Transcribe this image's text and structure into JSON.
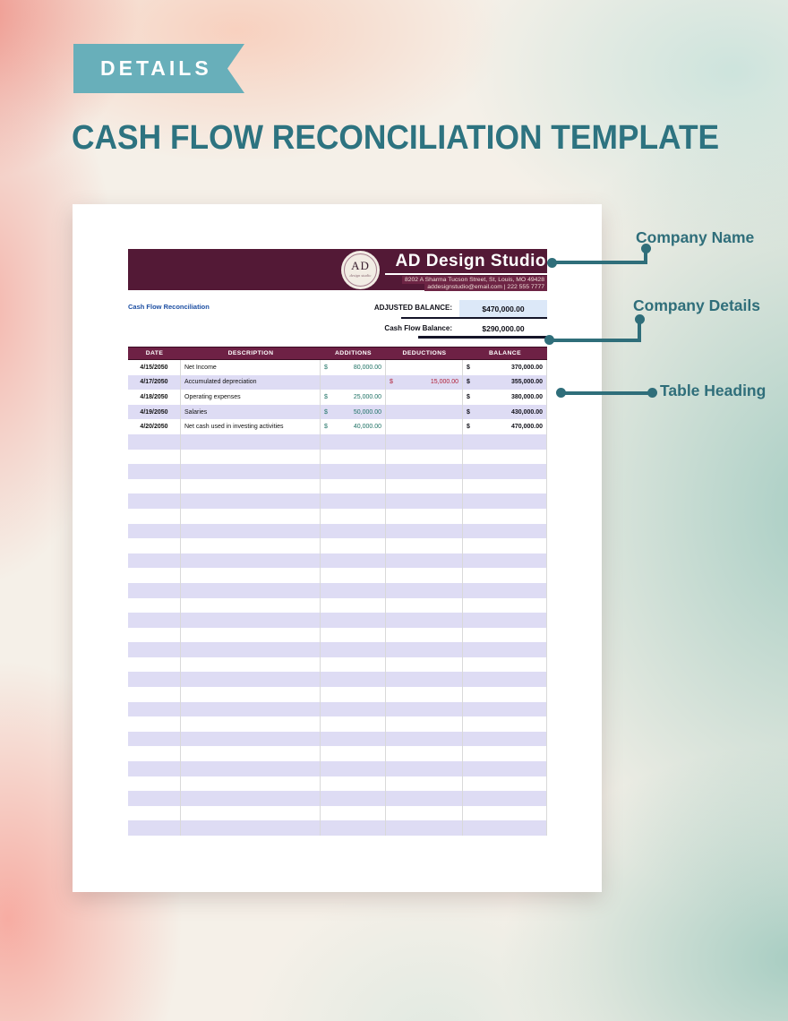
{
  "page": {
    "ribbon_label": "DETAILS",
    "title": "CASH FLOW RECONCILIATION TEMPLATE"
  },
  "document": {
    "logo": {
      "initials": "AD",
      "subtext": "design studio"
    },
    "company": {
      "name": "AD Design Studio",
      "address": "8202 A Sharma Tucson Street, St, Louis, MO 49428",
      "contact": "addesignstudio@email.com | 222 555 7777"
    },
    "subtitle": "Cash Flow Reconciliation",
    "balances": {
      "adjusted_label": "ADJUSTED BALANCE:",
      "adjusted_value": "$470,000.00",
      "cashflow_label": "Cash Flow Balance:",
      "cashflow_value": "$290,000.00"
    },
    "table": {
      "columns": [
        "DATE",
        "DESCRIPTION",
        "ADDITIONS",
        "DEDUCTIONS",
        "BALANCE"
      ],
      "currency_symbol": "$",
      "rows": [
        {
          "date": "4/15/2050",
          "description": "Net Income",
          "additions": "80,000.00",
          "deductions": "",
          "balance": "370,000.00"
        },
        {
          "date": "4/17/2050",
          "description": "Accumulated depreciation",
          "additions": "",
          "deductions": "15,000.00",
          "balance": "355,000.00"
        },
        {
          "date": "4/18/2050",
          "description": "Operating expenses",
          "additions": "25,000.00",
          "deductions": "",
          "balance": "380,000.00"
        },
        {
          "date": "4/19/2050",
          "description": "Salaries",
          "additions": "50,000.00",
          "deductions": "",
          "balance": "430,000.00"
        },
        {
          "date": "4/20/2050",
          "description": "Net cash used in investing activities",
          "additions": "40,000.00",
          "deductions": "",
          "balance": "470,000.00"
        }
      ],
      "empty_row_count": 27
    }
  },
  "callouts": [
    {
      "label": "Company Name"
    },
    {
      "label": "Company Details"
    },
    {
      "label": "Table Heading"
    }
  ],
  "colors": {
    "ribbon_teal": "#68afba",
    "title_teal": "#2d7380",
    "callout_teal": "#2f6e7a",
    "band_maroon": "#531936",
    "address_strip_maroon": "#6d2444",
    "table_header_maroon": "#6e2145",
    "row_stripe_lavender": "#dedcf4",
    "additions_green": "#1d7164",
    "deductions_red": "#b01e35",
    "subtitle_blue": "#1d4fa3",
    "balance_box_blue": "#dce8f8"
  }
}
